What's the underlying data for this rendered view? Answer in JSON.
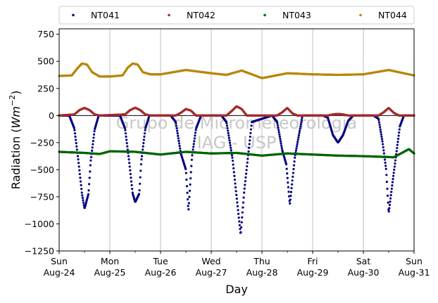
{
  "chart_data": {
    "type": "scatter",
    "xlabel": "Day",
    "ylabel_main": "Radiation (",
    "ylabel_unit": "Wm",
    "ylabel_exp": "−2",
    "ylabel_close": ")",
    "ylim": [
      -1250,
      800
    ],
    "yticks": [
      750,
      500,
      250,
      0,
      -250,
      -500,
      -750,
      -1000,
      -1250
    ],
    "xlim": [
      0,
      7
    ],
    "xticks": [
      {
        "x": 0,
        "day": "Sun",
        "date": "Aug-24"
      },
      {
        "x": 1,
        "day": "Mon",
        "date": "Aug-25"
      },
      {
        "x": 2,
        "day": "Tue",
        "date": "Aug-26"
      },
      {
        "x": 3,
        "day": "Wed",
        "date": "Aug-27"
      },
      {
        "x": 4,
        "day": "Thu",
        "date": "Aug-28"
      },
      {
        "x": 5,
        "day": "Fri",
        "date": "Aug-29"
      },
      {
        "x": 6,
        "day": "Sat",
        "date": "Aug-30"
      },
      {
        "x": 7,
        "day": "Sun",
        "date": "Aug-31"
      }
    ],
    "grid": "vertical",
    "legend_position": "top",
    "watermark": [
      "Grupo de Micrometeorologia",
      "IAG - USP"
    ],
    "series": [
      {
        "name": "NT041",
        "color": "#000080",
        "x": [
          0,
          0.2,
          0.3,
          0.38,
          0.45,
          0.5,
          0.58,
          0.62,
          0.7,
          0.78,
          0.85,
          1.2,
          1.3,
          1.38,
          1.45,
          1.5,
          1.58,
          1.62,
          1.7,
          1.78,
          1.85,
          2.2,
          2.3,
          2.4,
          2.5,
          2.55,
          2.62,
          2.7,
          2.8,
          3.2,
          3.3,
          3.42,
          3.5,
          3.58,
          3.65,
          3.72,
          3.8,
          4.2,
          4.3,
          4.4,
          4.48,
          4.55,
          4.65,
          4.8,
          5.2,
          5.3,
          5.4,
          5.5,
          5.6,
          5.7,
          5.8,
          6.2,
          6.3,
          6.38,
          6.45,
          6.5,
          6.58,
          6.65,
          6.72,
          6.8,
          7
        ],
        "y": [
          0,
          0,
          -120,
          -420,
          -720,
          -860,
          -720,
          -430,
          -130,
          0,
          0,
          0,
          -120,
          -420,
          -720,
          -800,
          -720,
          -420,
          -120,
          0,
          0,
          0,
          -60,
          -350,
          -500,
          -880,
          -380,
          -120,
          0,
          0,
          -60,
          -400,
          -750,
          -1100,
          -700,
          -400,
          -60,
          0,
          -60,
          -320,
          -450,
          -820,
          -380,
          0,
          0,
          -20,
          -180,
          -250,
          -180,
          -50,
          0,
          0,
          -30,
          -250,
          -500,
          -900,
          -600,
          -350,
          -100,
          0,
          0
        ]
      },
      {
        "name": "NT042",
        "color": "#a52a2a",
        "x": [
          0,
          0.3,
          0.4,
          0.5,
          0.6,
          0.7,
          0.8,
          1.3,
          1.4,
          1.5,
          1.6,
          1.7,
          1.8,
          2.3,
          2.4,
          2.5,
          2.6,
          2.7,
          3.3,
          3.4,
          3.5,
          3.6,
          3.7,
          4.3,
          4.4,
          4.5,
          4.6,
          4.7,
          5.3,
          5.4,
          5.5,
          5.6,
          5.7,
          6.3,
          6.4,
          6.5,
          6.6,
          6.7,
          7
        ],
        "y": [
          0,
          10,
          50,
          70,
          50,
          10,
          0,
          10,
          50,
          72,
          50,
          10,
          0,
          0,
          25,
          60,
          45,
          0,
          0,
          40,
          85,
          60,
          0,
          0,
          30,
          70,
          20,
          0,
          0,
          10,
          15,
          10,
          0,
          0,
          30,
          70,
          25,
          0,
          0
        ]
      },
      {
        "name": "NT043",
        "color": "#006400",
        "x": [
          0,
          0.5,
          0.8,
          1,
          1.5,
          2,
          2.5,
          3,
          3.5,
          4,
          4.5,
          5,
          5.5,
          6,
          6.3,
          6.6,
          6.9,
          7
        ],
        "y": [
          -335,
          -345,
          -355,
          -330,
          -335,
          -360,
          -335,
          -350,
          -345,
          -370,
          -350,
          -360,
          -370,
          -375,
          -380,
          -385,
          -310,
          -350
        ]
      },
      {
        "name": "NT044",
        "color": "#b8860b",
        "x": [
          0,
          0.25,
          0.35,
          0.45,
          0.55,
          0.65,
          0.8,
          1,
          1.25,
          1.35,
          1.45,
          1.55,
          1.65,
          1.8,
          2,
          2.5,
          3,
          3.3,
          3.6,
          4,
          4.5,
          5,
          5.5,
          6,
          6.5,
          7
        ],
        "y": [
          365,
          370,
          430,
          480,
          470,
          400,
          360,
          360,
          370,
          440,
          480,
          470,
          400,
          380,
          380,
          420,
          390,
          375,
          415,
          345,
          390,
          380,
          375,
          380,
          420,
          370
        ]
      }
    ]
  }
}
